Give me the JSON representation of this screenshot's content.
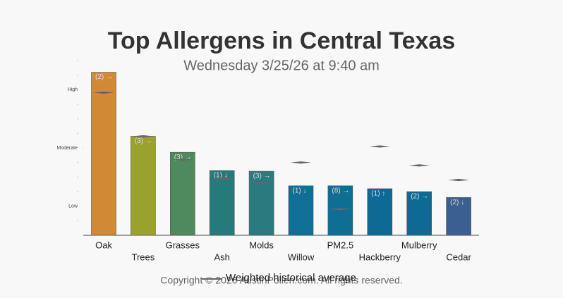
{
  "chart_data": {
    "type": "bar",
    "title": "Top Allergens in Central Texas",
    "subtitle": "Wednesday 3/25/26 at 9:40 am",
    "categories": [
      "Oak",
      "Trees",
      "Grasses",
      "Ash",
      "Molds",
      "Willow",
      "PM2.5",
      "Hackberry",
      "Mulberry",
      "Cedar"
    ],
    "values": [
      11.2,
      6.8,
      5.7,
      4.45,
      4.4,
      3.4,
      3.4,
      3.2,
      3.0,
      2.6
    ],
    "value_labels": [
      "(2) →",
      "(3) →",
      "(3) →",
      "(1) ↓",
      "(3) →",
      "(1) ↓",
      "(8) →",
      "(1) ↑",
      "(2) →",
      "(2) ↓"
    ],
    "colors": [
      "#d08a35",
      "#9aa22e",
      "#4f8a5e",
      "#277a7a",
      "#2a7a80",
      "#0f6f96",
      "#0e6e94",
      "#0c6a95",
      "#0e6a95",
      "#3b5f90"
    ],
    "average": {
      "name": "Weighted historical average",
      "color": "#666666",
      "values": [
        9.8,
        6.8,
        5.2,
        3.9,
        3.6,
        5.0,
        1.8,
        6.1,
        4.8,
        3.8
      ]
    },
    "ylim": [
      0,
      12
    ],
    "yticks": [
      {
        "value": 2,
        "label": "Low"
      },
      {
        "value": 6,
        "label": "Moderate"
      },
      {
        "value": 10,
        "label": "High"
      }
    ],
    "yminor": [
      1,
      3,
      4,
      5,
      7,
      8,
      9,
      11,
      12
    ],
    "footer": "Copyright © 2026 AustinPollen.com. All rights reserved."
  }
}
